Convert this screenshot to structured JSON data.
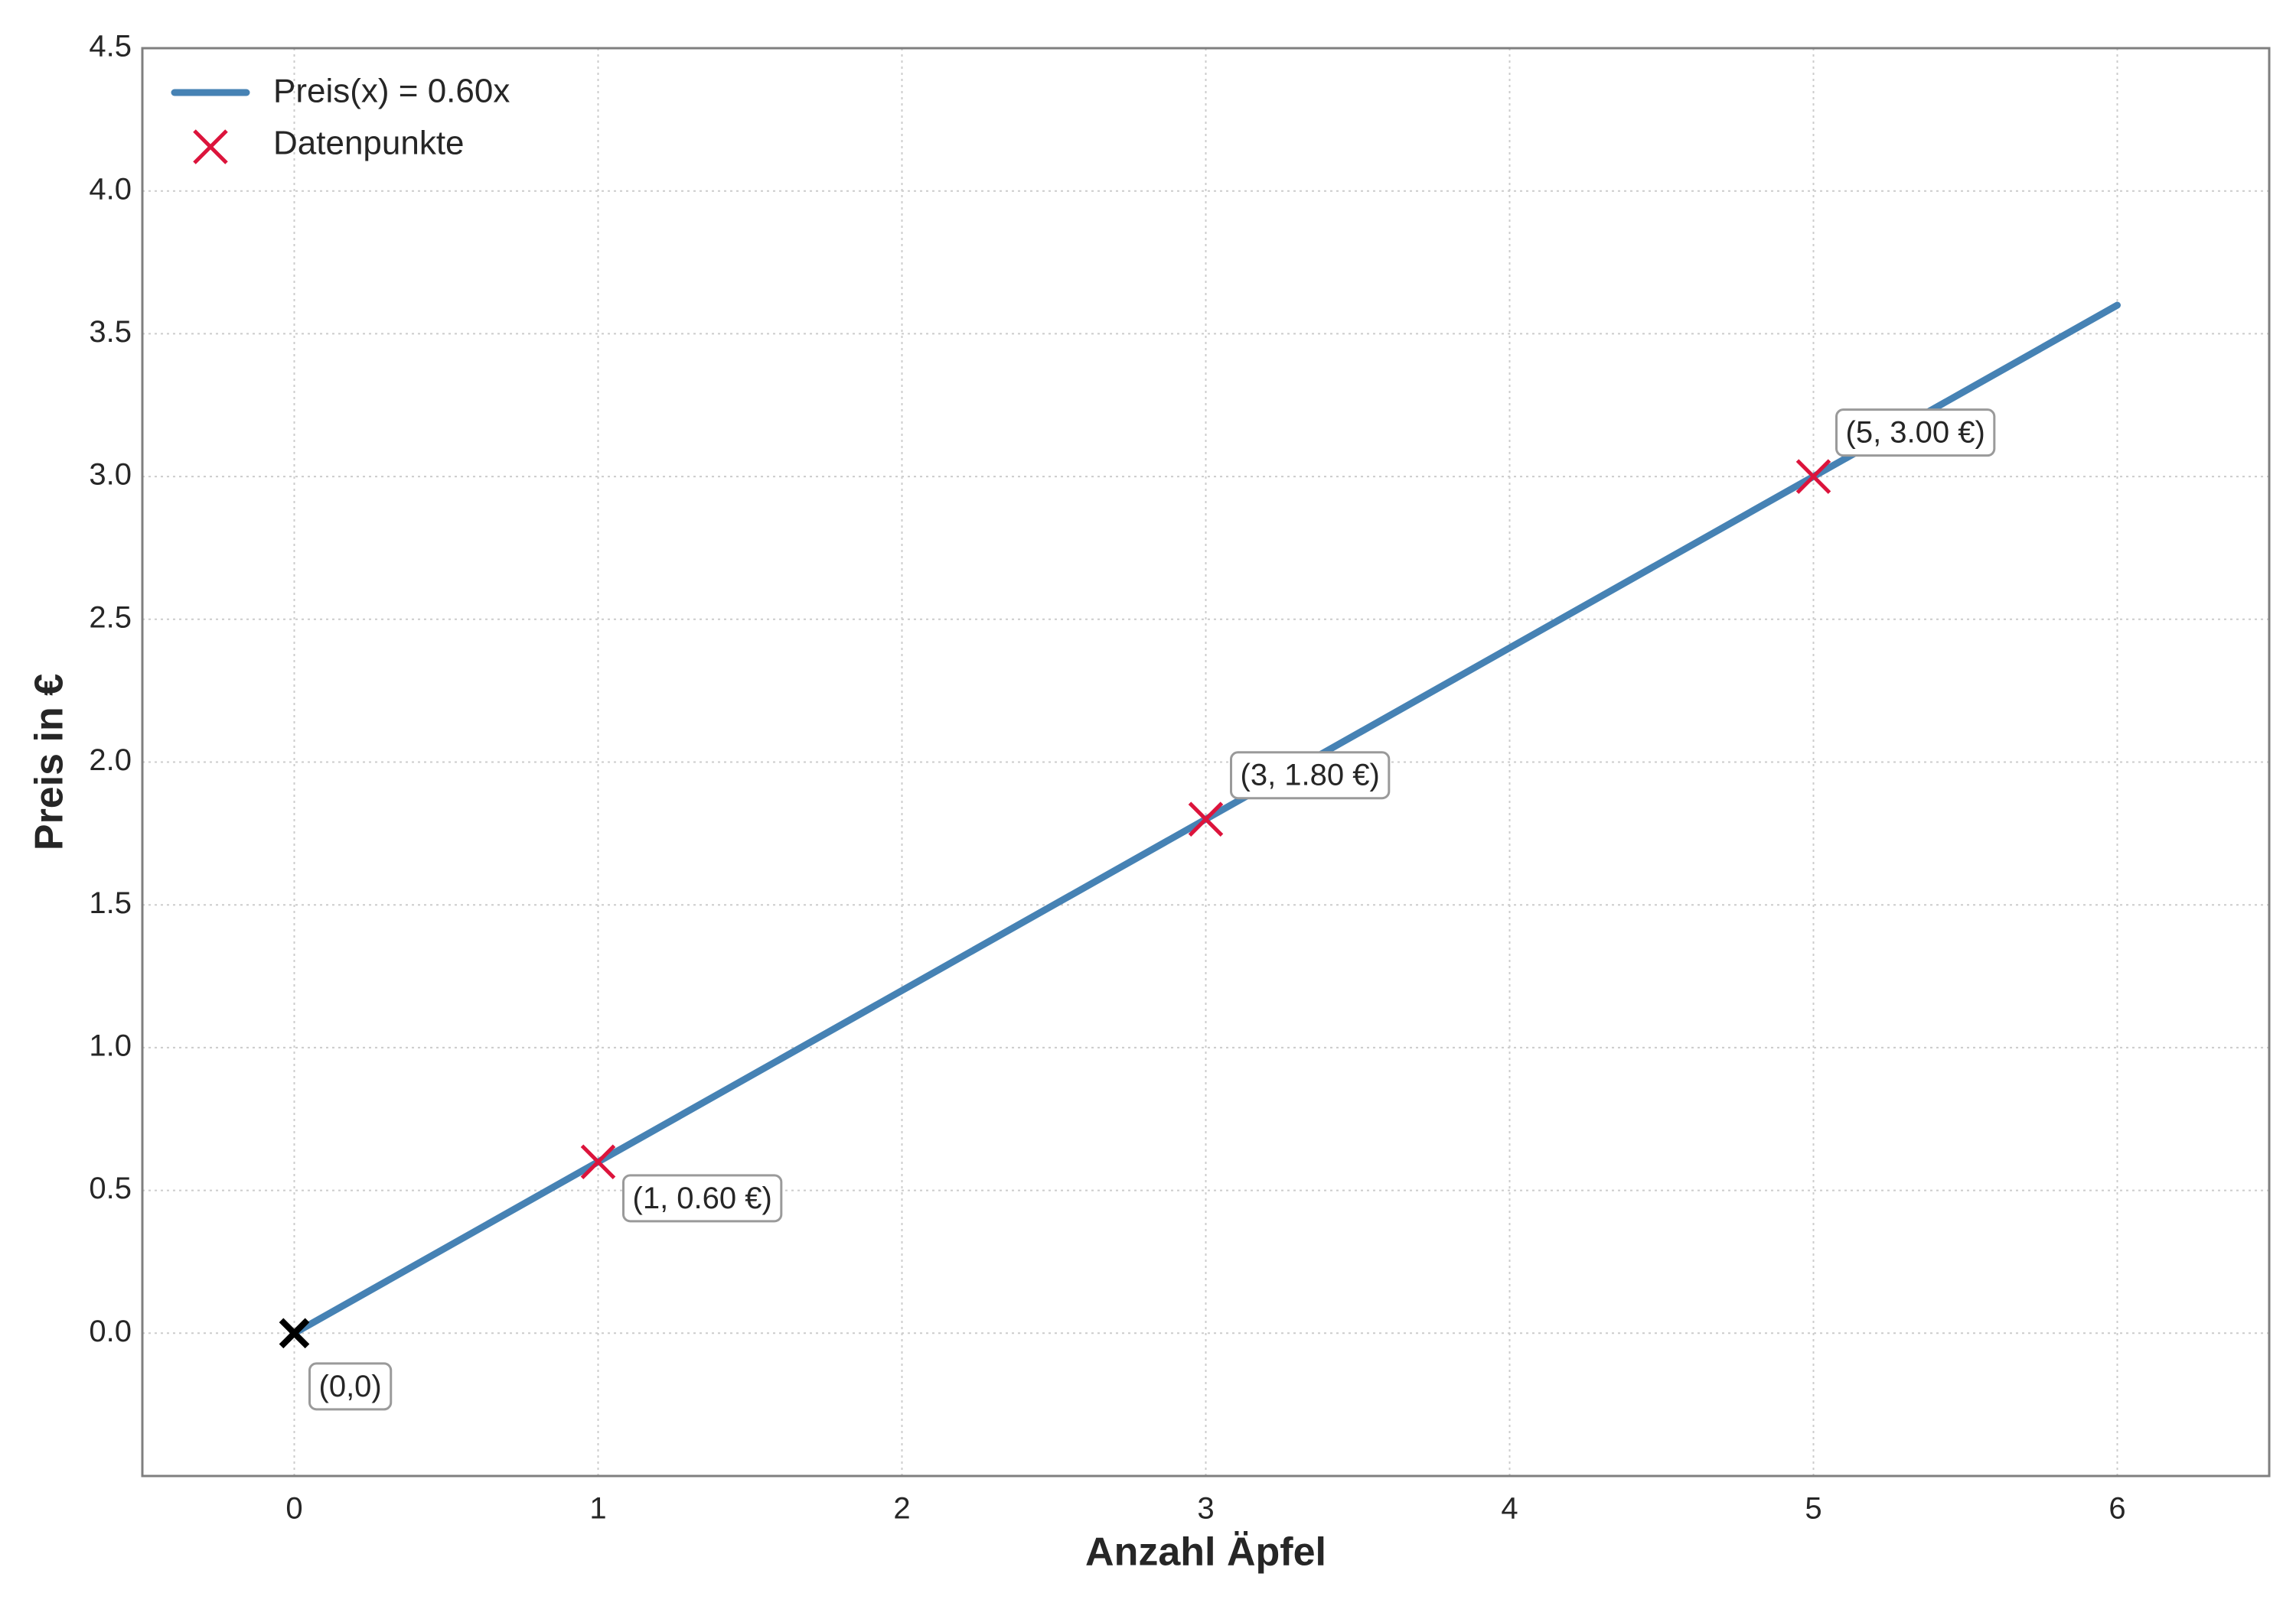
{
  "chart_data": {
    "type": "line",
    "title": "",
    "xlabel": "Anzahl Äpfel",
    "ylabel": "Preis in €",
    "xlim": [
      -0.5,
      6.5
    ],
    "ylim": [
      -0.5,
      4.5
    ],
    "xticks": [
      0,
      1,
      2,
      3,
      4,
      5,
      6
    ],
    "yticks": [
      0.0,
      0.5,
      1.0,
      1.5,
      2.0,
      2.5,
      3.0,
      3.5,
      4.0,
      4.5
    ],
    "xtick_labels": [
      "0",
      "1",
      "2",
      "3",
      "4",
      "5",
      "6"
    ],
    "ytick_labels": [
      "0.0",
      "0.5",
      "1.0",
      "1.5",
      "2.0",
      "2.5",
      "3.0",
      "3.5",
      "4.0",
      "4.5"
    ],
    "grid": true,
    "legend_position": "top-left",
    "series": [
      {
        "name": "Preis(x) = 0.60x",
        "kind": "line",
        "color": "#4682b4",
        "x": [
          0,
          6
        ],
        "y": [
          0,
          3.6
        ]
      },
      {
        "name": "Datenpunkte",
        "kind": "scatter",
        "marker": "x",
        "color": "#dc143c",
        "x": [
          1,
          3,
          5
        ],
        "y": [
          0.6,
          1.8,
          3.0
        ]
      }
    ],
    "origin_marker": {
      "x": 0,
      "y": 0,
      "color": "#000000"
    },
    "annotations": [
      {
        "text": "(0,0)",
        "x": 0,
        "y": 0
      },
      {
        "text": "(1, 0.60 €)",
        "x": 1,
        "y": 0.6
      },
      {
        "text": "(3, 1.80 €)",
        "x": 3,
        "y": 1.8
      },
      {
        "text": "(5, 3.00 €)",
        "x": 5,
        "y": 3.0
      }
    ]
  }
}
